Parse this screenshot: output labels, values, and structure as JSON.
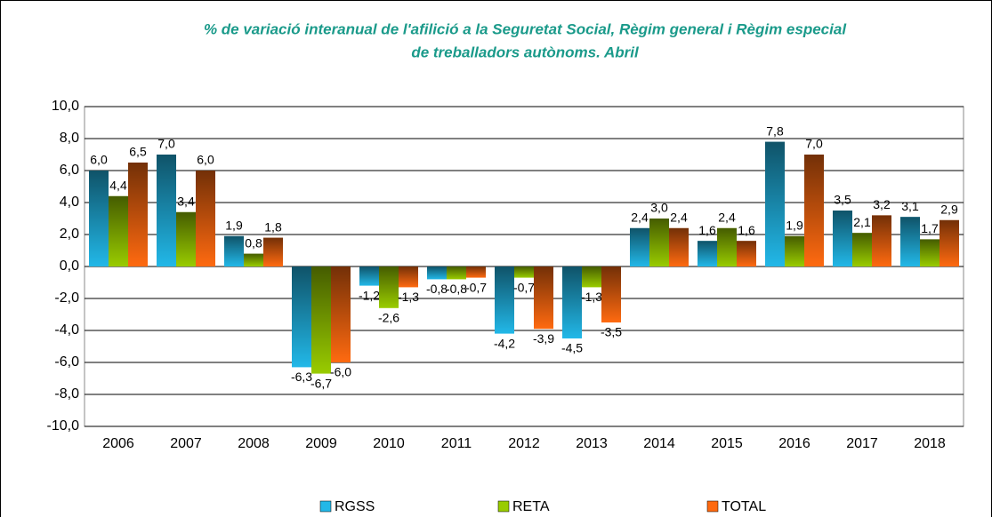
{
  "chart_data": {
    "type": "bar",
    "title": [
      "% de variació interanual de l'afilició a la Seguretat Social, Règim general i Règim especial",
      "de treballadors autònoms. Abril"
    ],
    "categories": [
      "2006",
      "2007",
      "2008",
      "2009",
      "2010",
      "2011",
      "2012",
      "2013",
      "2014",
      "2015",
      "2016",
      "2017",
      "2018"
    ],
    "series": [
      {
        "name": "RGSS",
        "color": "#22b8e8",
        "values": [
          6.0,
          7.0,
          1.9,
          -6.3,
          -1.2,
          -0.8,
          -4.2,
          -4.5,
          2.4,
          1.6,
          7.8,
          3.5,
          3.1
        ],
        "value_labels": [
          "6,0",
          "7,0",
          "1,9",
          "-6,3",
          "-1,2",
          "-0,8",
          "-4,2",
          "-4,5",
          "2,4",
          "1,6",
          "7,8",
          "3,5",
          "3,1"
        ]
      },
      {
        "name": "RETA",
        "color": "#99cc00",
        "values": [
          4.4,
          3.4,
          0.8,
          -6.7,
          -2.6,
          -0.8,
          -0.7,
          -1.3,
          3.0,
          2.4,
          1.9,
          2.1,
          1.7
        ],
        "value_labels": [
          "4,4",
          "3,4",
          "0,8",
          "-6,7",
          "-2,6",
          "-0,8",
          "-0,7",
          "-1,3",
          "3,0",
          "2,4",
          "1,9",
          "2,1",
          "1,7"
        ]
      },
      {
        "name": "TOTAL",
        "color": "#ff6a10",
        "values": [
          6.5,
          6.0,
          1.8,
          -6.0,
          -1.3,
          -0.7,
          -3.9,
          -3.5,
          2.4,
          1.6,
          7.0,
          3.2,
          2.9
        ],
        "value_labels": [
          "6,5",
          "6,0",
          "1,8",
          "-6,0",
          "-1,3",
          "-0,7",
          "-3,9",
          "-3,5",
          "2,4",
          "1,6",
          "7,0",
          "3,2",
          "2,9"
        ]
      }
    ],
    "ylim": [
      -10,
      10
    ],
    "yticks": [
      {
        "value": -10,
        "label": "-10,0"
      },
      {
        "value": -8,
        "label": "-8,0"
      },
      {
        "value": -6,
        "label": "-6,0"
      },
      {
        "value": -4,
        "label": "-4,0"
      },
      {
        "value": -2,
        "label": "-2,0"
      },
      {
        "value": 0,
        "label": "0,0"
      },
      {
        "value": 2,
        "label": "2,0"
      },
      {
        "value": 4,
        "label": "4,0"
      },
      {
        "value": 6,
        "label": "6,0"
      },
      {
        "value": 8,
        "label": "8,0"
      },
      {
        "value": 10,
        "label": "10,0"
      }
    ],
    "grid": true,
    "legend": "bottom"
  }
}
